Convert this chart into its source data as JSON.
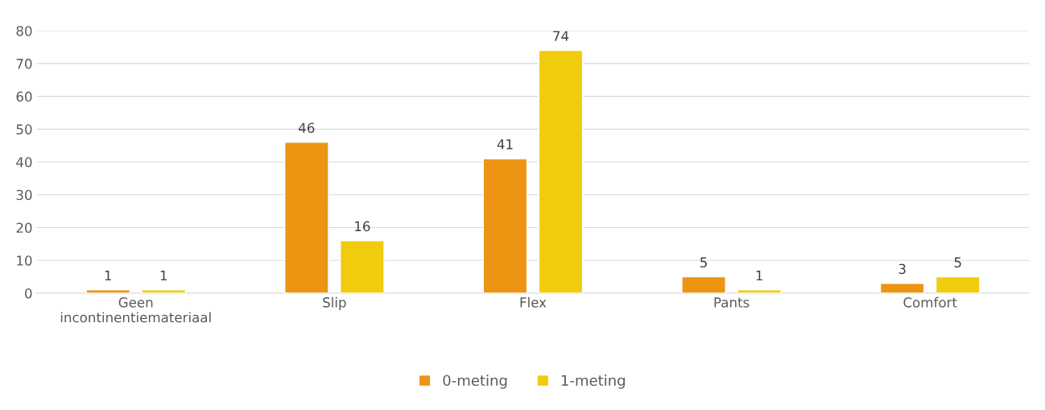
{
  "chart_data": {
    "type": "bar",
    "categories": [
      "Geen\nincontinentiemateriaal",
      "Slip",
      "Flex",
      "Pants",
      "Comfort"
    ],
    "series": [
      {
        "name": "0-meting",
        "color": "#ed9413",
        "values": [
          1,
          46,
          41,
          5,
          3
        ]
      },
      {
        "name": "1-meting",
        "color": "#f1cb0e",
        "values": [
          1,
          16,
          74,
          1,
          5
        ]
      }
    ],
    "ylim": [
      0,
      80
    ],
    "yticks": [
      0,
      10,
      20,
      30,
      40,
      50,
      60,
      70,
      80
    ],
    "grid": "y",
    "legend": "bottom",
    "data_labels": true
  }
}
